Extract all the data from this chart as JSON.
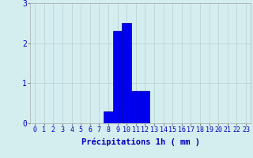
{
  "xlabel": "Précipitations 1h ( mm )",
  "ylabel": "",
  "hours": [
    0,
    1,
    2,
    3,
    4,
    5,
    6,
    7,
    8,
    9,
    10,
    11,
    12,
    13,
    14,
    15,
    16,
    17,
    18,
    19,
    20,
    21,
    22,
    23
  ],
  "values": [
    0,
    0,
    0,
    0,
    0,
    0,
    0,
    0,
    0.3,
    2.3,
    2.5,
    0.8,
    0.8,
    0,
    0,
    0,
    0,
    0,
    0,
    0,
    0,
    0,
    0,
    0
  ],
  "bar_color": "#0000ee",
  "bar_edge_color": "#000099",
  "background_color": "#d4eef0",
  "grid_color": "#b8cece",
  "text_color": "#0000bb",
  "ylim": [
    0,
    3
  ],
  "xlim": [
    -0.5,
    23.5
  ],
  "yticks": [
    0,
    1,
    2,
    3
  ],
  "xlabel_fontsize": 7.5,
  "tick_fontsize": 6.0
}
